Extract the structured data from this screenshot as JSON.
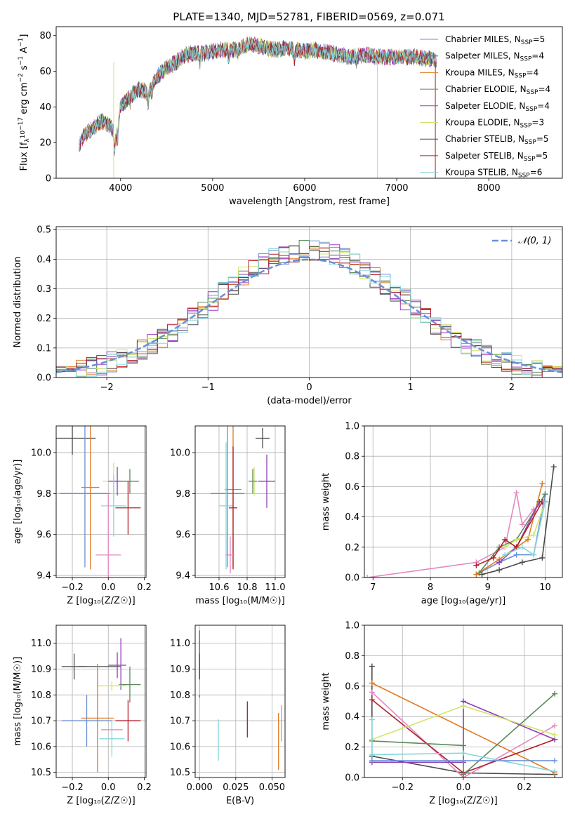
{
  "title": "PLATE=1340, MJD=52781, FIBERID=0569, z=0.071",
  "colors": {
    "chabrier_miles": "#6a8fd8",
    "salpeter_miles": "#8e3fb3",
    "kroupa_miles": "#e07b24",
    "chabrier_elodie": "#5b8a5b",
    "salpeter_elodie": "#9b3fc2",
    "kroupa_elodie": "#cfe56c",
    "chabrier_stelib": "#4a4a4a",
    "salpeter_stelib": "#b0202a",
    "kroupa_stelib": "#85d7db",
    "pink": "#e487c2",
    "gauss": "#6a8fd8"
  },
  "chart_data": [
    {
      "type": "line",
      "id": "spectrum",
      "xlabel": "wavelength [Angstrom, rest frame]",
      "ylabel_parts": [
        "Flux [f",
        "λ",
        "10",
        "−17",
        " erg cm",
        "−2",
        " s",
        "−1",
        " A",
        "−1",
        "]"
      ],
      "xlim": [
        3300,
        8800
      ],
      "ylim": [
        0,
        85
      ],
      "xticks": [
        4000,
        5000,
        6000,
        7000,
        8000
      ],
      "yticks": [
        0,
        20,
        40,
        60,
        80
      ],
      "legend": [
        {
          "label": "Chabrier MILES, N",
          "sub": "SSP",
          "suffix": "=5",
          "color": "#6a8fd8"
        },
        {
          "label": "Salpeter MILES, N",
          "sub": "SSP",
          "suffix": "=4",
          "color": "#8e3fb3"
        },
        {
          "label": "Kroupa MILES, N",
          "sub": "SSP",
          "suffix": "=4",
          "color": "#e07b24"
        },
        {
          "label": "Chabrier ELODIE, N",
          "sub": "SSP",
          "suffix": "=4",
          "color": "#5b8a5b"
        },
        {
          "label": "Salpeter ELODIE, N",
          "sub": "SSP",
          "suffix": "=4",
          "color": "#9b3fc2"
        },
        {
          "label": "Kroupa ELODIE, N",
          "sub": "SSP",
          "suffix": "=3",
          "color": "#cfe56c"
        },
        {
          "label": "Chabrier STELIB, N",
          "sub": "SSP",
          "suffix": "=5",
          "color": "#4a4a4a"
        },
        {
          "label": "Salpeter STELIB, N",
          "sub": "SSP",
          "suffix": "=5",
          "color": "#b0202a"
        },
        {
          "label": "Kroupa STELIB, N",
          "sub": "SSP",
          "suffix": "=6",
          "color": "#85d7db"
        }
      ],
      "continuum": [
        [
          3550,
          18
        ],
        [
          3600,
          24
        ],
        [
          3700,
          28
        ],
        [
          3800,
          32
        ],
        [
          3900,
          29
        ],
        [
          3950,
          22
        ],
        [
          4000,
          40
        ],
        [
          4100,
          46
        ],
        [
          4200,
          50
        ],
        [
          4300,
          48
        ],
        [
          4400,
          57
        ],
        [
          4500,
          62
        ],
        [
          4600,
          65
        ],
        [
          4700,
          69
        ],
        [
          4800,
          70
        ],
        [
          4900,
          70
        ],
        [
          5000,
          71
        ],
        [
          5100,
          72
        ],
        [
          5200,
          72
        ],
        [
          5300,
          73
        ],
        [
          5400,
          75
        ],
        [
          5500,
          74
        ],
        [
          5600,
          73
        ],
        [
          5700,
          72
        ],
        [
          5800,
          73
        ],
        [
          5900,
          72
        ],
        [
          6000,
          71
        ],
        [
          6100,
          72
        ],
        [
          6200,
          71
        ],
        [
          6300,
          70
        ],
        [
          6400,
          69
        ],
        [
          6500,
          68
        ],
        [
          6600,
          69
        ],
        [
          6700,
          69
        ],
        [
          6800,
          68
        ],
        [
          6900,
          68
        ],
        [
          7000,
          68
        ],
        [
          7100,
          68
        ],
        [
          7200,
          68
        ],
        [
          7300,
          67
        ],
        [
          7400,
          67
        ],
        [
          7430,
          66
        ]
      ],
      "dips": [
        [
          3933,
          -8
        ],
        [
          3968,
          -6
        ],
        [
          4102,
          -4
        ],
        [
          4300,
          -6
        ],
        [
          4340,
          -4
        ],
        [
          4861,
          -5
        ],
        [
          5175,
          -5
        ],
        [
          5270,
          -3
        ],
        [
          5890,
          -6
        ],
        [
          6563,
          -4
        ]
      ]
    },
    {
      "type": "bar",
      "id": "residuals",
      "xlabel": "(data-model)/error",
      "ylabel": "Normed distribution",
      "xlim": [
        -2.5,
        2.5
      ],
      "ylim": [
        0,
        0.51
      ],
      "xticks": [
        -2,
        -1,
        0,
        1,
        2
      ],
      "yticks": [
        0.0,
        0.1,
        0.2,
        0.3,
        0.4,
        0.5
      ],
      "legend_label": "𝒩(0, 1)",
      "bin_width": 0.1
    },
    {
      "type": "scatter",
      "id": "age_vs_Z",
      "xlabel": "Z [log₁₀(Z/Z☉)]",
      "ylabel": "age  [log₁₀(age/yr)]",
      "xlim": [
        -0.29,
        0.21
      ],
      "ylim": [
        9.39,
        10.13
      ],
      "xticks": [
        -0.2,
        0.0,
        0.2
      ],
      "yticks": [
        9.4,
        9.6,
        9.8,
        10.0
      ],
      "points": [
        {
          "x": -0.2,
          "y": 10.07,
          "xerr": 0.13,
          "yerr": 0.08,
          "c": "#4a4a4a"
        },
        {
          "x": -0.13,
          "y": 9.8,
          "xerr": 0.14,
          "yerr": 0.36,
          "c": "#6a8fd8"
        },
        {
          "x": -0.1,
          "y": 9.83,
          "xerr": 0.05,
          "yerr": 0.4,
          "c": "#e07b24"
        },
        {
          "x": 0.03,
          "y": 9.86,
          "xerr": 0.06,
          "yerr": 0.09,
          "c": "#cfe56c"
        },
        {
          "x": 0.05,
          "y": 9.86,
          "xerr": 0.05,
          "yerr": 0.07,
          "c": "#8e3fb3"
        },
        {
          "x": 0.03,
          "y": 9.74,
          "xerr": 0.07,
          "yerr": 0.15,
          "c": "#85d7db"
        },
        {
          "x": 0.12,
          "y": 9.86,
          "xerr": 0.05,
          "yerr": 0.06,
          "c": "#5b8a5b"
        },
        {
          "x": 0.11,
          "y": 9.73,
          "xerr": 0.07,
          "yerr": 0.13,
          "c": "#b0202a"
        },
        {
          "x": 0.0,
          "y": 9.5,
          "xerr": 0.07,
          "yerr": 0.3,
          "c": "#e487c2"
        }
      ]
    },
    {
      "type": "scatter",
      "id": "age_vs_mass",
      "xlabel": "mass [log₁₀(M/M☉)]",
      "ylabel": "",
      "xlim": [
        10.43,
        11.07
      ],
      "ylim": [
        9.39,
        10.13
      ],
      "xticks": [
        10.6,
        10.8,
        11.0
      ],
      "yticks": [
        9.4,
        9.6,
        9.8,
        10.0
      ],
      "points": [
        {
          "x": 10.91,
          "y": 10.07,
          "xerr": 0.05,
          "yerr": 0.05,
          "c": "#4a4a4a"
        },
        {
          "x": 10.66,
          "y": 9.8,
          "xerr": 0.12,
          "yerr": 0.36,
          "c": "#6a8fd8"
        },
        {
          "x": 10.7,
          "y": 9.82,
          "xerr": 0.06,
          "yerr": 0.38,
          "c": "#e07b24"
        },
        {
          "x": 10.85,
          "y": 9.86,
          "xerr": 0.04,
          "yerr": 0.07,
          "c": "#cfe56c"
        },
        {
          "x": 10.94,
          "y": 9.86,
          "xerr": 0.06,
          "yerr": 0.13,
          "c": "#8e3fb3"
        },
        {
          "x": 10.65,
          "y": 9.74,
          "xerr": 0.05,
          "yerr": 0.31,
          "c": "#85d7db"
        },
        {
          "x": 10.84,
          "y": 9.86,
          "xerr": 0.03,
          "yerr": 0.06,
          "c": "#5b8a5b"
        },
        {
          "x": 10.7,
          "y": 9.73,
          "xerr": 0.03,
          "yerr": 0.3,
          "c": "#b0202a"
        },
        {
          "x": 10.68,
          "y": 9.5,
          "xerr": 0.03,
          "yerr": 0.09,
          "c": "#e487c2"
        }
      ]
    },
    {
      "type": "line",
      "id": "weight_vs_age",
      "xlabel": "age  [log₁₀(age/yr)]",
      "ylabel": "mass weight",
      "xlim": [
        6.85,
        10.3
      ],
      "ylim": [
        0,
        1.0
      ],
      "xticks": [
        7,
        8,
        9,
        10
      ],
      "yticks": [
        0.0,
        0.2,
        0.4,
        0.6,
        0.8,
        1.0
      ],
      "series": [
        {
          "c": "#e487c2",
          "pts": [
            [
              6.9,
              0
            ],
            [
              8.8,
              0.1
            ],
            [
              9.3,
              0.2
            ],
            [
              9.5,
              0.56
            ],
            [
              9.6,
              0.35
            ],
            [
              9.8,
              0.45
            ],
            [
              10.0,
              0.5
            ]
          ]
        },
        {
          "c": "#6a8fd8",
          "pts": [
            [
              8.8,
              0.02
            ],
            [
              9.2,
              0.1
            ],
            [
              9.5,
              0.15
            ],
            [
              9.8,
              0.15
            ],
            [
              10.0,
              0.55
            ]
          ]
        },
        {
          "c": "#e07b24",
          "pts": [
            [
              8.8,
              0.02
            ],
            [
              9.2,
              0.12
            ],
            [
              9.5,
              0.2
            ],
            [
              9.7,
              0.25
            ],
            [
              9.95,
              0.62
            ]
          ]
        },
        {
          "c": "#5b8a5b",
          "pts": [
            [
              8.85,
              0.03
            ],
            [
              9.2,
              0.2
            ],
            [
              9.5,
              0.25
            ],
            [
              10.0,
              0.55
            ]
          ]
        },
        {
          "c": "#8e3fb3",
          "pts": [
            [
              9.2,
              0.1
            ],
            [
              9.5,
              0.2
            ],
            [
              9.9,
              0.5
            ],
            [
              10.0,
              0.5
            ]
          ]
        },
        {
          "c": "#cfe56c",
          "pts": [
            [
              9.3,
              0.2
            ],
            [
              9.5,
              0.25
            ],
            [
              9.8,
              0.28
            ],
            [
              10.0,
              0.5
            ]
          ]
        },
        {
          "c": "#4a4a4a",
          "pts": [
            [
              8.9,
              0.02
            ],
            [
              9.2,
              0.05
            ],
            [
              9.6,
              0.1
            ],
            [
              9.95,
              0.13
            ],
            [
              10.15,
              0.73
            ]
          ]
        },
        {
          "c": "#b0202a",
          "pts": [
            [
              8.8,
              0.08
            ],
            [
              9.1,
              0.13
            ],
            [
              9.3,
              0.25
            ],
            [
              9.5,
              0.2
            ],
            [
              9.95,
              0.5
            ],
            [
              10.0,
              0.5
            ]
          ]
        },
        {
          "c": "#85d7db",
          "pts": [
            [
              9.3,
              0.15
            ],
            [
              9.6,
              0.2
            ],
            [
              9.8,
              0.15
            ],
            [
              10.0,
              0.5
            ]
          ]
        }
      ]
    },
    {
      "type": "scatter",
      "id": "mass_vs_Z",
      "xlabel": "Z [log₁₀(Z/Z☉)]",
      "ylabel": "mass [log₁₀(M/M☉)]",
      "xlim": [
        -0.29,
        0.21
      ],
      "ylim": [
        10.48,
        11.07
      ],
      "xticks": [
        -0.2,
        0.0,
        0.2
      ],
      "yticks": [
        10.5,
        10.6,
        10.7,
        10.8,
        10.9,
        11.0
      ],
      "points": [
        {
          "x": -0.19,
          "y": 10.91,
          "xerr": 0.07,
          "yerr": 0.05,
          "c": "#4a4a4a"
        },
        {
          "x": -0.05,
          "y": 10.91,
          "xerr": 0.12,
          "yerr": 0.0,
          "c": "#4a4a4a"
        },
        {
          "x": 0.05,
          "y": 10.915,
          "xerr": 0.05,
          "yerr": 0.05,
          "c": "#8e3fb3"
        },
        {
          "x": 0.07,
          "y": 10.92,
          "xerr": 0.0,
          "yerr": 0.1,
          "c": "#9b3fc2"
        },
        {
          "x": 0.02,
          "y": 10.835,
          "xerr": 0.08,
          "yerr": 0.02,
          "c": "#cfe56c"
        },
        {
          "x": 0.12,
          "y": 10.84,
          "xerr": 0.06,
          "yerr": 0.07,
          "c": "#5b8a5b"
        },
        {
          "x": -0.12,
          "y": 10.7,
          "xerr": 0.14,
          "yerr": 0.1,
          "c": "#6a8fd8"
        },
        {
          "x": -0.06,
          "y": 10.71,
          "xerr": 0.09,
          "yerr": 0.21,
          "c": "#e07b24"
        },
        {
          "x": 0.11,
          "y": 10.7,
          "xerr": 0.07,
          "yerr": 0.08,
          "c": "#b0202a"
        },
        {
          "x": 0.02,
          "y": 10.665,
          "xerr": 0.06,
          "yerr": 0.0,
          "c": "#e487c2"
        },
        {
          "x": 0.02,
          "y": 10.63,
          "xerr": 0.07,
          "yerr": 0.07,
          "c": "#85d7db"
        }
      ]
    },
    {
      "type": "scatter",
      "id": "mass_vs_ebv",
      "xlabel": "E(B-V)",
      "ylabel": "",
      "xlim": [
        -0.003,
        0.059
      ],
      "ylim": [
        10.48,
        11.07
      ],
      "xticks": [
        0.0,
        0.025,
        0.05
      ],
      "yticks": [
        10.5,
        10.6,
        10.7,
        10.8,
        10.9,
        11.0
      ],
      "points": [
        {
          "x": 0.0,
          "y": 10.92,
          "xerr": 0,
          "yerr": 0.13,
          "c": "#8e3fb3"
        },
        {
          "x": 0.0,
          "y": 10.88,
          "xerr": 0,
          "yerr": 0.08,
          "c": "#4a4a4a"
        },
        {
          "x": 0.0,
          "y": 10.83,
          "xerr": 0,
          "yerr": 0.03,
          "c": "#cfe56c"
        },
        {
          "x": 0.013,
          "y": 10.625,
          "xerr": 0,
          "yerr": 0.08,
          "c": "#85d7db"
        },
        {
          "x": 0.033,
          "y": 10.705,
          "xerr": 0,
          "yerr": 0.07,
          "c": "#b0202a"
        },
        {
          "x": 0.0545,
          "y": 10.62,
          "xerr": 0,
          "yerr": 0.11,
          "c": "#e07b24"
        },
        {
          "x": 0.0565,
          "y": 10.69,
          "xerr": 0,
          "yerr": 0.07,
          "c": "#e487c2"
        }
      ]
    },
    {
      "type": "line",
      "id": "weight_vs_Z",
      "xlabel": "Z [log₁₀(Z/Z☉)]",
      "ylabel": "mass weight",
      "xlim": [
        -0.325,
        0.325
      ],
      "ylim": [
        0,
        1.0
      ],
      "xticks": [
        -0.2,
        0.0,
        0.2
      ],
      "yticks": [
        0.0,
        0.2,
        0.4,
        0.6,
        0.8,
        1.0
      ],
      "series": [
        {
          "c": "#4a4a4a",
          "pts": [
            [
              -0.3,
              0.73
            ],
            [
              -0.3,
              0.14
            ],
            [
              0.0,
              0.03
            ],
            [
              0.3,
              0.02
            ]
          ]
        },
        {
          "c": "#e487c2",
          "pts": [
            [
              -0.3,
              0.56
            ],
            [
              0.0,
              0.0
            ],
            [
              0.3,
              0.34
            ]
          ]
        },
        {
          "c": "#e07b24",
          "pts": [
            [
              -0.3,
              0.62
            ],
            [
              0.3,
              0.03
            ]
          ]
        },
        {
          "c": "#b0202a",
          "pts": [
            [
              -0.3,
              0.51
            ],
            [
              0.0,
              0.03
            ],
            [
              0.3,
              0.25
            ]
          ]
        },
        {
          "c": "#8e3fb3",
          "pts": [
            [
              -0.3,
              0.1
            ],
            [
              0.0,
              0.1
            ],
            [
              0.0,
              0.5
            ],
            [
              0.3,
              0.25
            ]
          ]
        },
        {
          "c": "#cfe56c",
          "pts": [
            [
              -0.3,
              0.25
            ],
            [
              0.0,
              0.47
            ],
            [
              0.3,
              0.28
            ]
          ]
        },
        {
          "c": "#5b8a5b",
          "pts": [
            [
              -0.3,
              0.24
            ],
            [
              0.0,
              0.21
            ],
            [
              0.0,
              0.02
            ],
            [
              0.3,
              0.55
            ]
          ]
        },
        {
          "c": "#85d7db",
          "pts": [
            [
              -0.3,
              0.38
            ],
            [
              -0.3,
              0.15
            ],
            [
              0.0,
              0.16
            ],
            [
              0.3,
              0.04
            ]
          ]
        },
        {
          "c": "#6a8fd8",
          "pts": [
            [
              -0.3,
              0.11
            ],
            [
              0.0,
              0.11
            ],
            [
              0.3,
              0.11
            ]
          ]
        }
      ]
    }
  ]
}
